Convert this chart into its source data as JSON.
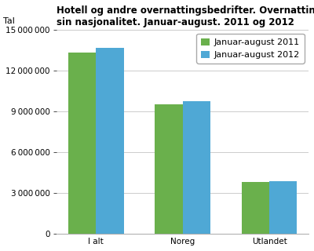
{
  "title": "Hotell og andre overnattingsbedrifter. Overnattingar, etter gjestene\nsin nasjonalitet. Januar-august. 2011 og 2012",
  "ylabel_text": "Tal",
  "categories": [
    "I alt",
    "Noreg",
    "Utlandet"
  ],
  "values_2011": [
    13300000,
    9500000,
    3800000
  ],
  "values_2012": [
    13650000,
    9750000,
    3870000
  ],
  "color_2011": "#6ab04c",
  "color_2012": "#4fa8d5",
  "legend_2011": "Januar-august 2011",
  "legend_2012": "Januar-august 2012",
  "ylim": [
    0,
    15000000
  ],
  "yticks": [
    0,
    3000000,
    6000000,
    9000000,
    12000000,
    15000000
  ],
  "background_color": "#ffffff",
  "grid_color": "#cccccc",
  "title_fontsize": 8.5,
  "legend_fontsize": 8,
  "tick_fontsize": 7.5,
  "ylabel_fontsize": 8
}
